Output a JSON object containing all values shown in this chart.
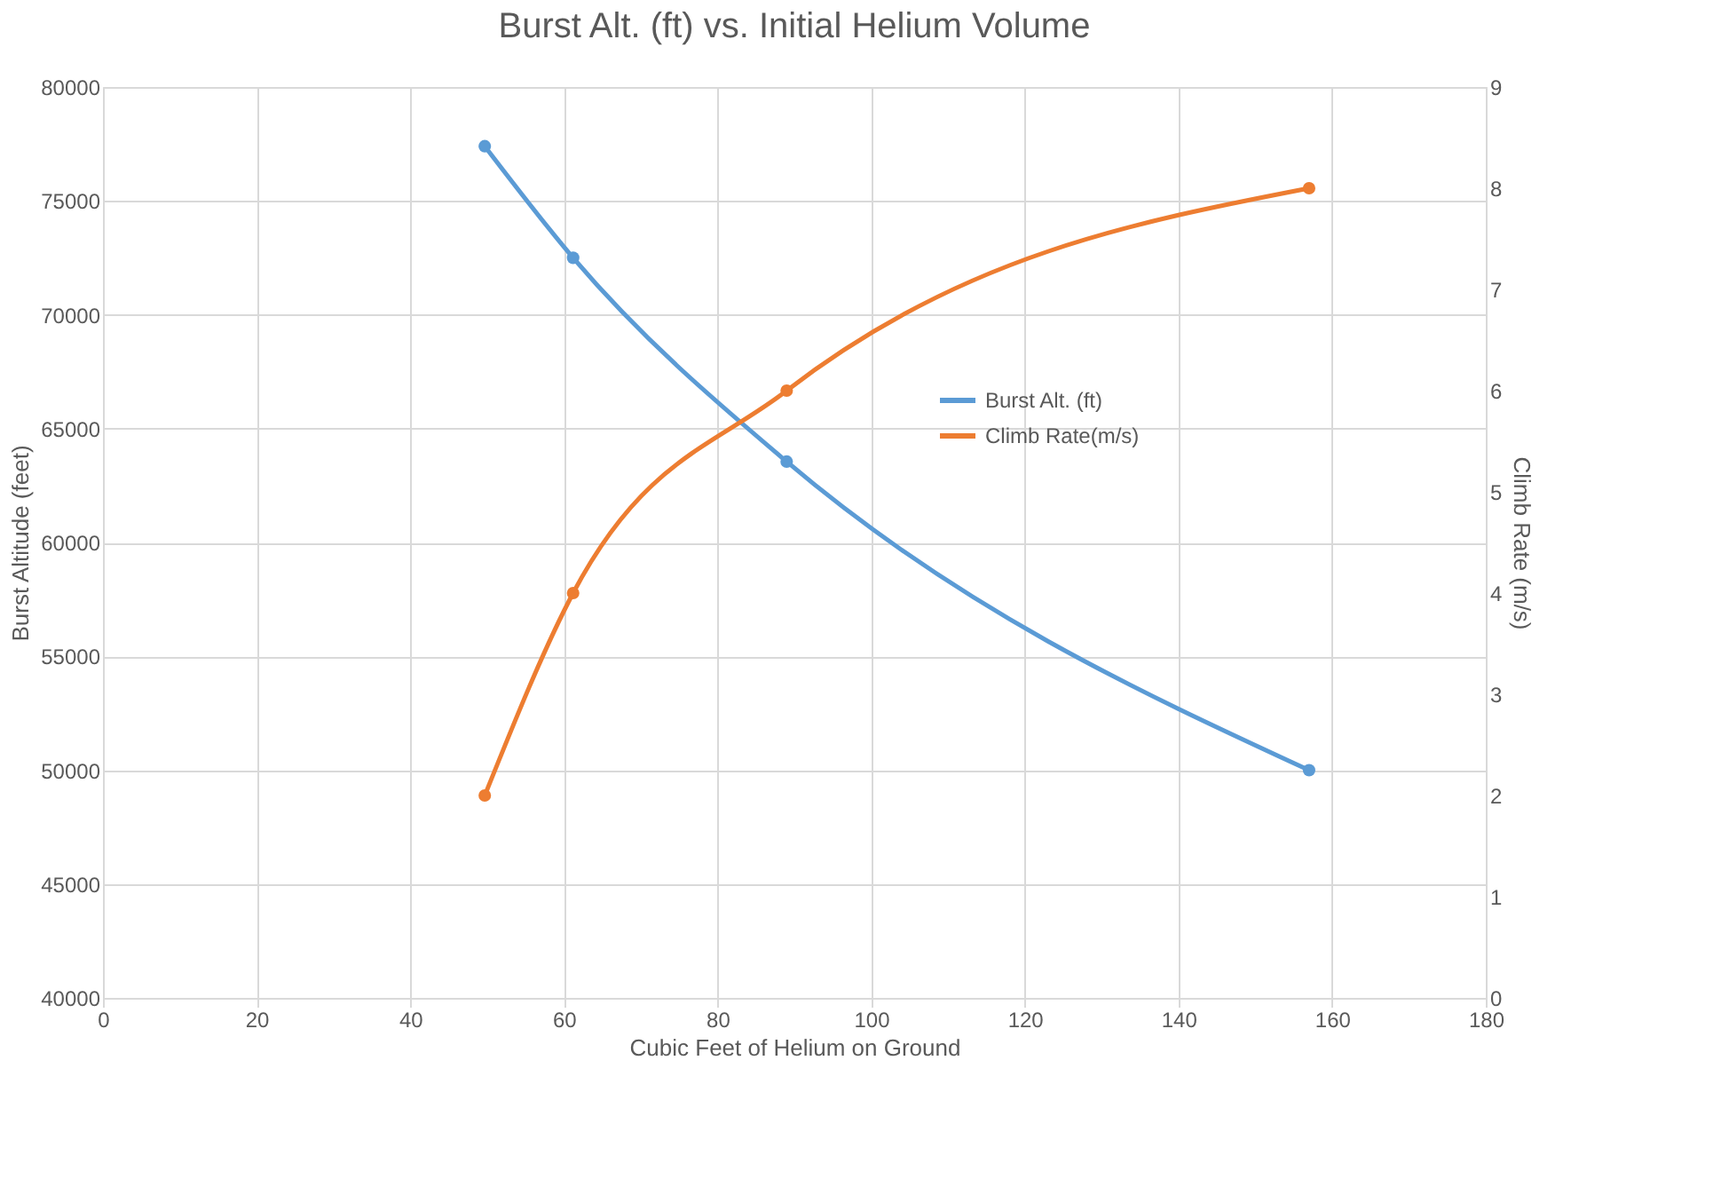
{
  "chart_data": {
    "type": "line",
    "title": "Burst Alt. (ft) vs. Initial Helium Volume",
    "xlabel": "Cubic Feet  of Helium on Ground",
    "ylabel": "Burst Altitude (feet)",
    "y2label": "Climb Rate  (m/s)",
    "x": [
      49.7,
      61.2,
      89,
      157
    ],
    "series": [
      {
        "name": "Burst Alt. (ft)",
        "color": "#5b9bd5",
        "values": [
          77400,
          72500,
          63550,
          50000
        ]
      },
      {
        "name": "Climb Rate(m/s)",
        "color": "#ed7d31",
        "values": [
          2,
          4,
          6,
          8
        ],
        "axis": "y2"
      }
    ],
    "xlim": [
      0,
      180
    ],
    "xticks": [
      0,
      20,
      40,
      60,
      80,
      100,
      120,
      140,
      160,
      180
    ],
    "ylim": [
      40000,
      80000
    ],
    "yticks": [
      40000,
      45000,
      50000,
      55000,
      60000,
      65000,
      70000,
      75000,
      80000
    ],
    "y2lim": [
      0,
      9
    ],
    "y2ticks": [
      0,
      1,
      2,
      3,
      4,
      5,
      6,
      7,
      8,
      9
    ],
    "grid": true,
    "legend": "right",
    "marker": "circle",
    "line_style": "solid"
  }
}
